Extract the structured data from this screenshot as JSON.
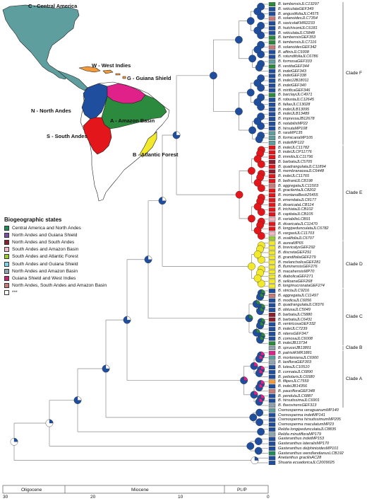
{
  "map": {
    "regions": [
      {
        "id": "C",
        "label": "C - Central America",
        "color": "#5f9e9e"
      },
      {
        "id": "W",
        "label": "W - West Indies",
        "color": "#f39a3b"
      },
      {
        "id": "G",
        "label": "G - Guiana Shield",
        "color": "#e0218a"
      },
      {
        "id": "N",
        "label": "N - North Andes",
        "color": "#1f4e9e"
      },
      {
        "id": "A",
        "label": "A - Amazon Basin",
        "color": "#2c8a3e"
      },
      {
        "id": "S",
        "label": "S - South Andes",
        "color": "#e3161b"
      },
      {
        "id": "B",
        "label": "B - Atlantic Forest",
        "color": "#f2e92b"
      }
    ]
  },
  "legend": {
    "title": "Biogeographic states",
    "items": [
      {
        "label": "Central America and North Andes",
        "color": "#1f8a5a"
      },
      {
        "label": "North Andes and Guiana Shield",
        "color": "#7a4fa0"
      },
      {
        "label": "North Andes and South Andes",
        "color": "#8b1e2e"
      },
      {
        "label": "South Andes and Amazon Basin",
        "color": "#f2b8c6"
      },
      {
        "label": "South Andes and Atlantic Forest",
        "color": "#9acd32"
      },
      {
        "label": "South Andes and Guiana Shield",
        "color": "#7fd4e6"
      },
      {
        "label": "North Andes and Amazon Basin",
        "color": "#8fa3b0"
      },
      {
        "label": "Guiana Shield and West Indies",
        "color": "#c0266e"
      },
      {
        "label": "North Andes, South Andes and Amazon Basin",
        "color": "#c77b7b"
      },
      {
        "label": "***",
        "color": "#ffffff"
      }
    ]
  },
  "tips": [
    {
      "g": "B.",
      "s": "tambensisJLC13297",
      "c": "#2c8a3e"
    },
    {
      "g": "B.",
      "s": "reticulataGEF349",
      "c": "#1f4e9e"
    },
    {
      "g": "B.",
      "s": "angustifoliaJLC4575",
      "c": "#1f4e9e"
    },
    {
      "g": "B.",
      "s": "solanoidesJLC7354",
      "c": "#c77b7b"
    },
    {
      "g": "B.",
      "s": "saxicolaKMR2233",
      "c": "#1f4e9e"
    },
    {
      "g": "B.",
      "s": "hutchisoniiJLC6181",
      "c": "#1f4e9e"
    },
    {
      "g": "B.",
      "s": "reticulataJLC5848",
      "c": "#1f4e9e"
    },
    {
      "g": "B.",
      "s": "tambensisGEF353",
      "c": "#2c8a3e"
    },
    {
      "g": "B.",
      "s": "tambensisJLC7116",
      "c": "#2c8a3e"
    },
    {
      "g": "B.",
      "s": "solanoidesGEF342",
      "c": "#c77b7b"
    },
    {
      "g": "B.",
      "s": "affinisJLC9308",
      "c": "#1f4e9e"
    },
    {
      "g": "B.",
      "s": "rotundifoliaJLC6786",
      "c": "#1f4e9e"
    },
    {
      "g": "B.",
      "s": "formosaGEF333",
      "c": "#5f9e9e"
    },
    {
      "g": "B.",
      "s": "vestitaGEF344",
      "c": "#2c8a3e"
    },
    {
      "g": "B.",
      "s": "indetGEF343",
      "c": "#1f4e9e"
    },
    {
      "g": "B.",
      "s": "indetGEF338",
      "c": "#1f4e9e"
    },
    {
      "g": "B.",
      "s": "indetJJB18011",
      "c": "#1f4e9e"
    },
    {
      "g": "B.",
      "s": "indetGEF340",
      "c": "#1f4e9e"
    },
    {
      "g": "B.",
      "s": "mirificaGEF346",
      "c": "#1f4e9e"
    },
    {
      "g": "B.",
      "s": "barclayiJLC4971",
      "c": "#2c8a3e"
    },
    {
      "g": "B.",
      "s": "robustaJLC12645",
      "c": "#1f4e9e"
    },
    {
      "g": "B.",
      "s": "fallaxJLC13028",
      "c": "#1f4e9e"
    },
    {
      "g": "B.",
      "s": "indetJLB13095",
      "c": "#1f4e9e"
    },
    {
      "g": "B.",
      "s": "indetJLB13489",
      "c": "#1f4e9e"
    },
    {
      "g": "B.",
      "s": "impressaJB12678",
      "c": "#1f4e9e"
    },
    {
      "g": "B.",
      "s": "notabilisMP22",
      "c": "#1f4e9e"
    },
    {
      "g": "B.",
      "s": "hirsutaMP108",
      "c": "#1f4e9e"
    },
    {
      "g": "B.",
      "s": "raraMP135",
      "c": "#5f9e9e"
    },
    {
      "g": "B.",
      "s": "formicariaMP105",
      "c": "#5f9e9e"
    },
    {
      "g": "B.",
      "s": "indetMP122",
      "c": "#5f9e9e"
    },
    {
      "g": "B.",
      "s": "indetJLC11782",
      "c": "#e3161b"
    },
    {
      "g": "B.",
      "s": "indetJLCP11776",
      "c": "#e3161b"
    },
    {
      "g": "B.",
      "s": "immitisJLC11796",
      "c": "#e3161b"
    },
    {
      "g": "B.",
      "s": "barbataJLC5705",
      "c": "#8b1e2e"
    },
    {
      "g": "B.",
      "s": "quadrangulataJLC11894",
      "c": "#e3161b"
    },
    {
      "g": "B.",
      "s": "membranaceaJLC6448",
      "c": "#8b1e2e"
    },
    {
      "g": "B.",
      "s": "indetJLC11765",
      "c": "#e3161b"
    },
    {
      "g": "B.",
      "s": "beltraniiJLC8198",
      "c": "#e3161b"
    },
    {
      "g": "B.",
      "s": "aggregataJLC11503",
      "c": "#c77b7b"
    },
    {
      "g": "B.",
      "s": "gracilentaJLC8202",
      "c": "#e3161b"
    },
    {
      "g": "B.",
      "s": "montanaBeck25455",
      "c": "#e3161b"
    },
    {
      "g": "B.",
      "s": "emendataJLC8177",
      "c": "#e3161b"
    },
    {
      "g": "B.",
      "s": "divaricataLCB114",
      "c": "#e3161b"
    },
    {
      "g": "B.",
      "s": "trichiataJLCB102",
      "c": "#e3161b"
    },
    {
      "g": "B.",
      "s": "capitataJLCB105",
      "c": "#e3161b"
    },
    {
      "g": "B.",
      "s": "variabilisLCB91",
      "c": "#f2b8c6"
    },
    {
      "g": "B.",
      "s": "divaricataJLC11470",
      "c": "#e3161b"
    },
    {
      "g": "B.",
      "s": "longipedunculataJLC6782",
      "c": "#e3161b"
    },
    {
      "g": "B.",
      "s": "vargasiiJLC11703",
      "c": "#f2b8c6"
    },
    {
      "g": "B.",
      "s": "ovalifoliaJLC6707",
      "c": "#9acd32"
    },
    {
      "g": "B.",
      "s": "aureaMP65",
      "c": "#f2e92b"
    },
    {
      "g": "B.",
      "s": "brevicalyxGEF292",
      "c": "#f2e92b"
    },
    {
      "g": "B.",
      "s": "discretaGEF291",
      "c": "#f2e92b"
    },
    {
      "g": "B.",
      "s": "grandifoliaGEF279",
      "c": "#f2e92b"
    },
    {
      "g": "B.",
      "s": "melancholicaGEF281",
      "c": "#f2e92b"
    },
    {
      "g": "B.",
      "s": "fluminensisGEF276",
      "c": "#f2e92b"
    },
    {
      "g": "B.",
      "s": "macahensisMP70",
      "c": "#f2e92b"
    },
    {
      "g": "B.",
      "s": "diabolicaGEF271",
      "c": "#f2e92b"
    },
    {
      "g": "B.",
      "s": "selloanaGEF268",
      "c": "#f2e92b"
    },
    {
      "g": "B.",
      "s": "longimucronataGEF274",
      "c": "#f2e92b"
    },
    {
      "g": "B.",
      "s": "strictaJLC9216",
      "c": "#1f4e9e"
    },
    {
      "g": "B.",
      "s": "aggregataJLC11497",
      "c": "#c77b7b"
    },
    {
      "g": "B.",
      "s": "modicaJLC6056",
      "c": "#1f4e9e"
    },
    {
      "g": "B.",
      "s": "quadrangulataJLC8376",
      "c": "#1f4e9e"
    },
    {
      "g": "B.",
      "s": "obtusaJLC5049",
      "c": "#1f4e9e"
    },
    {
      "g": "B.",
      "s": "barbataJLC5880",
      "c": "#8b1e2e"
    },
    {
      "g": "B.",
      "s": "barbataJLC6431",
      "c": "#8b1e2e"
    },
    {
      "g": "B.",
      "s": "ventricosaGEF332",
      "c": "#1f4e9e"
    },
    {
      "g": "B.",
      "s": "indetJLC7239",
      "c": "#1f4e9e"
    },
    {
      "g": "B.",
      "s": "nitensGEF347",
      "c": "#1f4e9e"
    },
    {
      "g": "B.",
      "s": "comosaJLC6008",
      "c": "#1f4e9e"
    },
    {
      "g": "B.",
      "s": "indetJB13734",
      "c": "#2c8a3e"
    },
    {
      "g": "B.",
      "s": "spruceiJB13801",
      "c": "#8fa3b0"
    },
    {
      "g": "B.",
      "s": "patrisiiKMR1881",
      "c": "#e0218a"
    },
    {
      "g": "B.",
      "s": "mortonianaJLC6900",
      "c": "#5f9e9e"
    },
    {
      "g": "B.",
      "s": "laxifloraGEF303",
      "c": "#8fa3b0"
    },
    {
      "g": "B.",
      "s": "luteaJLC10510",
      "c": "#1f4e9e"
    },
    {
      "g": "B.",
      "s": "connataJLC6890",
      "c": "#1f4e9e"
    },
    {
      "g": "B.",
      "s": "petiolarisJLC6580",
      "c": "#1f4e9e"
    },
    {
      "g": "B.",
      "s": "filipesJLC7559",
      "c": "#f39a3b"
    },
    {
      "g": "B.",
      "s": "indetJB14356",
      "c": "#1f4e9e"
    },
    {
      "g": "B.",
      "s": "paucifloraGEF348",
      "c": "#c77b7b"
    },
    {
      "g": "B.",
      "s": "pendulaJLC6887",
      "c": "#1f4e9e"
    },
    {
      "g": "B.",
      "s": "hirsutissimaJLC6901",
      "c": "#1f4e9e"
    },
    {
      "g": "B.",
      "s": "flavovirensGEF313",
      "c": "#8fa3b0"
    },
    {
      "g": "Cremosperma",
      "s": "veraguanumMP140",
      "c": "#5f9e9e"
    },
    {
      "g": "Cremosperma",
      "s": "indetMP141",
      "c": "#1f4e9e"
    },
    {
      "g": "Cremosperma",
      "s": "hirsutissimumMP205",
      "c": "#1f4e9e"
    },
    {
      "g": "Cremosperma",
      "s": "maculatumMP23",
      "c": "#1f4e9e"
    },
    {
      "g": "Reldia",
      "s": "longipedunculataJLC8835",
      "c": "#1f4e9e"
    },
    {
      "g": "Reldia",
      "s": "minutifloraMP179",
      "c": "#8fa3b0"
    },
    {
      "g": "Gasteranthus",
      "s": "indetMP153",
      "c": "#1f4e9e"
    },
    {
      "g": "Gasteranthus",
      "s": "lateralisMP170",
      "c": "#1f4e9e"
    },
    {
      "g": "Gasteranthus",
      "s": "delphinioidesMP101",
      "c": "#1f4e9e"
    },
    {
      "g": "Gasteranthus",
      "s": "wendlandianusLCB192",
      "c": "#1f8a5a"
    },
    {
      "g": "Anetanthus",
      "s": "gracilisAC28",
      "c": "#1f4e9e"
    },
    {
      "g": "Shuaria",
      "s": "ecuadoricaJLC2009025",
      "c": "#1f4e9e"
    }
  ],
  "clades": [
    {
      "label": "Clade F",
      "from": 0,
      "to": 29
    },
    {
      "label": "Clade E",
      "from": 30,
      "to": 49
    },
    {
      "label": "Clade D",
      "from": 50,
      "to": 59
    },
    {
      "label": "Clade C",
      "from": 60,
      "to": 71
    },
    {
      "label": "Clade B",
      "from": 72,
      "to": 72
    },
    {
      "label": "Clade A",
      "from": 73,
      "to": 84
    }
  ],
  "axis": {
    "epochs": [
      "Oligocene",
      "Miocene",
      "Pl./P"
    ],
    "ticks": [
      "30",
      "20",
      "10",
      "0"
    ]
  }
}
